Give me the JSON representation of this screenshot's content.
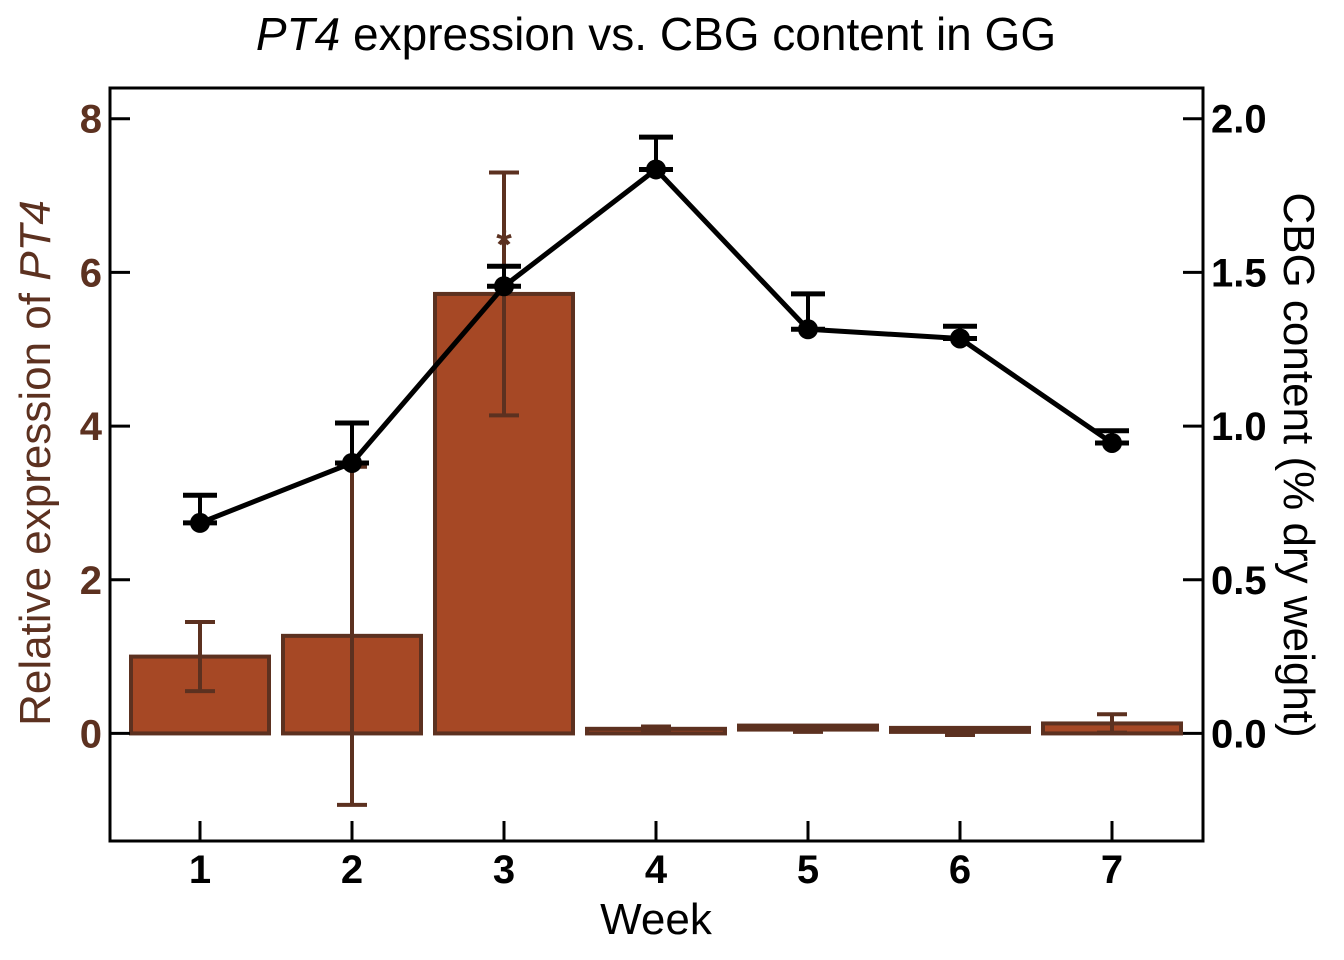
{
  "chart_data": {
    "type": "bar",
    "title_italic": "PT4",
    "title_rest": " expression vs. CBG content in GG",
    "xlabel": "Week",
    "ylabel_left_prefix": "Relative expression of ",
    "ylabel_left_italic": "PT4",
    "ylabel_right": "CBG content (% dry weight)",
    "categories": [
      "1",
      "2",
      "3",
      "4",
      "5",
      "6",
      "7"
    ],
    "ylim_left": [
      -1.4,
      8.4
    ],
    "ylim_right": [
      -0.35,
      2.1
    ],
    "yticks_left": [
      {
        "value": 0,
        "label": "0"
      },
      {
        "value": 2,
        "label": "2"
      },
      {
        "value": 4,
        "label": "4"
      },
      {
        "value": 6,
        "label": "6"
      },
      {
        "value": 8,
        "label": "8"
      }
    ],
    "yticks_right": [
      {
        "value": 0.0,
        "label": "0.0"
      },
      {
        "value": 0.5,
        "label": "0.5"
      },
      {
        "value": 1.0,
        "label": "1.0"
      },
      {
        "value": 1.5,
        "label": "1.5"
      },
      {
        "value": 2.0,
        "label": "2.0"
      }
    ],
    "series": [
      {
        "axis": "left",
        "kind": "bar",
        "values": [
          1.0,
          1.27,
          5.72,
          0.06,
          0.05,
          0.02,
          0.13
        ],
        "errors": [
          0.45,
          2.2,
          1.58,
          0.03,
          0.03,
          0.04,
          0.12
        ]
      },
      {
        "axis": "right",
        "kind": "line",
        "values": [
          0.685,
          0.88,
          1.455,
          1.835,
          1.315,
          1.285,
          0.945
        ],
        "errors": [
          0.09,
          0.13,
          0.065,
          0.105,
          0.115,
          0.04,
          0.04
        ]
      }
    ],
    "annotations": [
      {
        "category": "3",
        "text": "*",
        "value": 6.5
      }
    ],
    "colors": {
      "bar_fill": "#A64825",
      "bar_edge": "#5C3120",
      "left_axis_text": "#5C3120",
      "line": "#000000"
    },
    "grid": false
  }
}
